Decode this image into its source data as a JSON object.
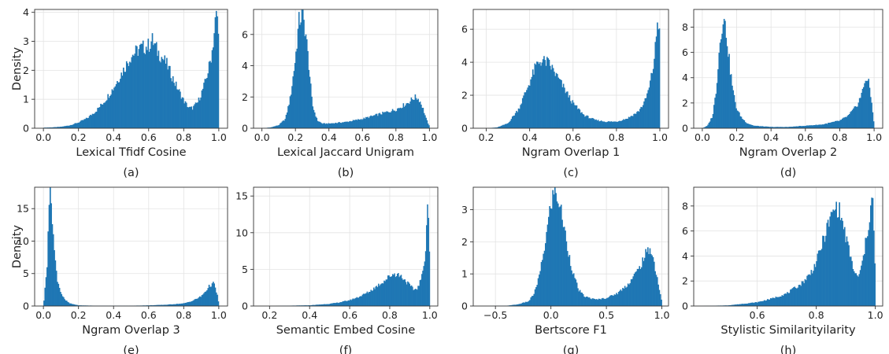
{
  "figure": {
    "bar_color": "#1f77b4",
    "grid": true
  },
  "chart_data": [
    {
      "type": "histogram",
      "panel_label": "(a)",
      "xlabel": "Lexical Tfidf Cosine",
      "ylabel": "Density",
      "xlim": [
        -0.05,
        1.05
      ],
      "ylim": [
        0,
        4.1
      ],
      "xticks": [
        0.0,
        0.2,
        0.4,
        0.6,
        0.8,
        1.0
      ],
      "xtick_labels": [
        "0.0",
        "0.2",
        "0.4",
        "0.6",
        "0.8",
        "1.0"
      ],
      "yticks": [
        0,
        1,
        2,
        3,
        4
      ],
      "ytick_labels": [
        "0",
        "1",
        "2",
        "3",
        "4"
      ],
      "x": [
        0.0,
        0.05,
        0.1,
        0.15,
        0.2,
        0.25,
        0.3,
        0.35,
        0.4,
        0.45,
        0.5,
        0.55,
        0.6,
        0.62,
        0.65,
        0.7,
        0.75,
        0.8,
        0.83,
        0.85,
        0.88,
        0.9,
        0.92,
        0.94,
        0.96,
        0.97,
        0.98,
        0.99,
        1.0
      ],
      "density": [
        0.02,
        0.03,
        0.05,
        0.1,
        0.2,
        0.35,
        0.6,
        0.95,
        1.4,
        1.95,
        2.5,
        2.75,
        2.85,
        3.05,
        2.65,
        2.25,
        1.55,
        0.95,
        0.7,
        0.7,
        0.9,
        1.2,
        1.55,
        2.0,
        2.6,
        3.1,
        3.7,
        4.0,
        2.8
      ]
    },
    {
      "type": "histogram",
      "panel_label": "(b)",
      "xlabel": "Lexical Jaccard Unigram",
      "ylabel": "",
      "xlim": [
        -0.05,
        1.05
      ],
      "ylim": [
        0,
        7.6
      ],
      "xticks": [
        0.0,
        0.2,
        0.4,
        0.6,
        0.8,
        1.0
      ],
      "xtick_labels": [
        "0.0",
        "0.2",
        "0.4",
        "0.6",
        "0.8",
        "1.0"
      ],
      "yticks": [
        0,
        2,
        4,
        6
      ],
      "ytick_labels": [
        "0",
        "2",
        "4",
        "6"
      ],
      "x": [
        0.0,
        0.05,
        0.1,
        0.14,
        0.17,
        0.2,
        0.22,
        0.24,
        0.26,
        0.28,
        0.3,
        0.33,
        0.36,
        0.4,
        0.5,
        0.6,
        0.7,
        0.8,
        0.85,
        0.88,
        0.9,
        0.92,
        0.94,
        0.96,
        0.98,
        1.0
      ],
      "density": [
        0.0,
        0.05,
        0.2,
        0.6,
        2.0,
        4.5,
        6.8,
        7.3,
        6.2,
        4.0,
        1.5,
        0.5,
        0.3,
        0.3,
        0.4,
        0.6,
        0.9,
        1.2,
        1.5,
        1.7,
        1.9,
        2.0,
        1.8,
        1.3,
        0.6,
        0.1
      ]
    },
    {
      "type": "histogram",
      "panel_label": "(c)",
      "xlabel": "Ngram Overlap 1",
      "ylabel": "",
      "xlim": [
        0.14,
        1.04
      ],
      "ylim": [
        0,
        7.2
      ],
      "xticks": [
        0.2,
        0.4,
        0.6,
        0.8,
        1.0
      ],
      "xtick_labels": [
        "0.2",
        "0.4",
        "0.6",
        "0.8",
        "1.0"
      ],
      "yticks": [
        0,
        2,
        4,
        6
      ],
      "ytick_labels": [
        "0",
        "2",
        "4",
        "6"
      ],
      "x": [
        0.2,
        0.25,
        0.3,
        0.35,
        0.4,
        0.43,
        0.45,
        0.48,
        0.5,
        0.55,
        0.6,
        0.65,
        0.7,
        0.75,
        0.8,
        0.85,
        0.9,
        0.93,
        0.95,
        0.97,
        0.98,
        0.99,
        1.0
      ],
      "density": [
        0.0,
        0.05,
        0.3,
        1.2,
        2.8,
        3.8,
        4.1,
        4.0,
        3.7,
        2.6,
        1.5,
        0.8,
        0.5,
        0.4,
        0.4,
        0.6,
        1.0,
        1.6,
        2.4,
        3.8,
        5.0,
        6.8,
        5.5
      ]
    },
    {
      "type": "histogram",
      "panel_label": "(d)",
      "xlabel": "Ngram Overlap 2",
      "ylabel": "",
      "xlim": [
        -0.05,
        1.05
      ],
      "ylim": [
        0,
        9.4
      ],
      "xticks": [
        0.0,
        0.2,
        0.4,
        0.6,
        0.8,
        1.0
      ],
      "xtick_labels": [
        "0.0",
        "0.2",
        "0.4",
        "0.6",
        "0.8",
        "1.0"
      ],
      "yticks": [
        0,
        2,
        4,
        6,
        8
      ],
      "ytick_labels": [
        "0",
        "2",
        "4",
        "6",
        "8"
      ],
      "x": [
        0.0,
        0.03,
        0.06,
        0.08,
        0.1,
        0.12,
        0.14,
        0.16,
        0.18,
        0.2,
        0.23,
        0.26,
        0.3,
        0.4,
        0.5,
        0.6,
        0.7,
        0.8,
        0.85,
        0.9,
        0.93,
        0.95,
        0.97,
        0.99,
        1.0
      ],
      "density": [
        0.0,
        0.2,
        1.0,
        3.0,
        6.5,
        8.9,
        7.5,
        4.8,
        2.8,
        1.5,
        0.8,
        0.4,
        0.2,
        0.1,
        0.1,
        0.2,
        0.3,
        0.6,
        1.0,
        1.8,
        2.8,
        4.0,
        3.5,
        1.5,
        0.2
      ]
    },
    {
      "type": "histogram",
      "panel_label": "(e)",
      "xlabel": "Ngram Overlap 3",
      "ylabel": "Density",
      "xlim": [
        -0.05,
        1.05
      ],
      "ylim": [
        0,
        18.3
      ],
      "xticks": [
        0.0,
        0.2,
        0.4,
        0.6,
        0.8,
        1.0
      ],
      "xtick_labels": [
        "0.0",
        "0.2",
        "0.4",
        "0.6",
        "0.8",
        "1.0"
      ],
      "yticks": [
        0,
        5,
        10,
        15
      ],
      "ytick_labels": [
        "0",
        "5",
        "10",
        "15"
      ],
      "x": [
        0.0,
        0.02,
        0.03,
        0.04,
        0.05,
        0.06,
        0.07,
        0.08,
        0.1,
        0.12,
        0.15,
        0.2,
        0.3,
        0.4,
        0.5,
        0.6,
        0.7,
        0.8,
        0.85,
        0.9,
        0.93,
        0.95,
        0.97,
        0.99,
        1.0
      ],
      "density": [
        0.0,
        6.0,
        16.0,
        17.5,
        14.0,
        9.0,
        6.0,
        4.0,
        2.0,
        1.0,
        0.4,
        0.1,
        0.05,
        0.05,
        0.05,
        0.1,
        0.2,
        0.4,
        0.8,
        1.5,
        2.5,
        3.2,
        3.5,
        1.8,
        0.3
      ]
    },
    {
      "type": "histogram",
      "panel_label": "(f)",
      "xlabel": "Semantic Embed Cosine",
      "ylabel": "",
      "xlim": [
        0.12,
        1.04
      ],
      "ylim": [
        0,
        16.2
      ],
      "xticks": [
        0.2,
        0.4,
        0.6,
        0.8,
        1.0
      ],
      "xtick_labels": [
        "0.2",
        "0.4",
        "0.6",
        "0.8",
        "1.0"
      ],
      "yticks": [
        0,
        5,
        10,
        15
      ],
      "ytick_labels": [
        "0",
        "5",
        "10",
        "15"
      ],
      "x": [
        0.2,
        0.3,
        0.4,
        0.5,
        0.55,
        0.6,
        0.65,
        0.7,
        0.75,
        0.78,
        0.8,
        0.82,
        0.84,
        0.86,
        0.88,
        0.9,
        0.92,
        0.94,
        0.96,
        0.97,
        0.98,
        0.99,
        1.0
      ],
      "density": [
        0.0,
        0.05,
        0.1,
        0.3,
        0.5,
        0.8,
        1.3,
        2.0,
        3.0,
        3.6,
        4.1,
        4.4,
        4.3,
        4.0,
        3.4,
        2.8,
        2.2,
        2.5,
        4.0,
        5.5,
        8.5,
        15.4,
        5.0
      ]
    },
    {
      "type": "histogram",
      "panel_label": "(g)",
      "xlabel": "Bertscore F1",
      "ylabel": "",
      "xlim": [
        -0.7,
        1.06
      ],
      "ylim": [
        0,
        3.7
      ],
      "xticks": [
        -0.5,
        0.0,
        0.5,
        1.0
      ],
      "xtick_labels": [
        "−0.5",
        "0.0",
        "0.5",
        "1.0"
      ],
      "yticks": [
        0,
        1,
        2,
        3
      ],
      "ytick_labels": [
        "0",
        "1",
        "2",
        "3"
      ],
      "x": [
        -0.6,
        -0.4,
        -0.3,
        -0.2,
        -0.15,
        -0.1,
        -0.05,
        0.0,
        0.03,
        0.06,
        0.1,
        0.15,
        0.2,
        0.25,
        0.3,
        0.4,
        0.5,
        0.6,
        0.7,
        0.8,
        0.85,
        0.9,
        0.95,
        1.0
      ],
      "density": [
        0.0,
        0.01,
        0.05,
        0.15,
        0.4,
        1.0,
        2.0,
        3.2,
        3.55,
        3.4,
        2.8,
        1.8,
        1.0,
        0.5,
        0.3,
        0.2,
        0.25,
        0.4,
        0.7,
        1.2,
        1.6,
        1.8,
        1.0,
        0.1
      ]
    },
    {
      "type": "histogram",
      "panel_label": "(h)",
      "xlabel": "Stylistic Similarityilarity",
      "ylabel": "",
      "xlim": [
        0.385,
        1.025
      ],
      "ylim": [
        0,
        9.5
      ],
      "xticks": [
        0.6,
        0.8,
        1.0
      ],
      "xtick_labels": [
        "0.6",
        "0.8",
        "1.0"
      ],
      "yticks": [
        0,
        2,
        4,
        6,
        8
      ],
      "ytick_labels": [
        "0",
        "2",
        "4",
        "6",
        "8"
      ],
      "x": [
        0.4,
        0.5,
        0.6,
        0.65,
        0.7,
        0.75,
        0.78,
        0.8,
        0.82,
        0.84,
        0.86,
        0.87,
        0.88,
        0.9,
        0.92,
        0.93,
        0.94,
        0.95,
        0.96,
        0.97,
        0.98,
        0.99,
        1.0
      ],
      "density": [
        0.0,
        0.05,
        0.3,
        0.6,
        1.0,
        1.8,
        2.6,
        3.5,
        5.0,
        6.5,
        7.7,
        7.9,
        7.5,
        5.5,
        3.5,
        2.6,
        2.3,
        2.8,
        4.0,
        5.5,
        7.0,
        9.1,
        2.0
      ]
    }
  ]
}
